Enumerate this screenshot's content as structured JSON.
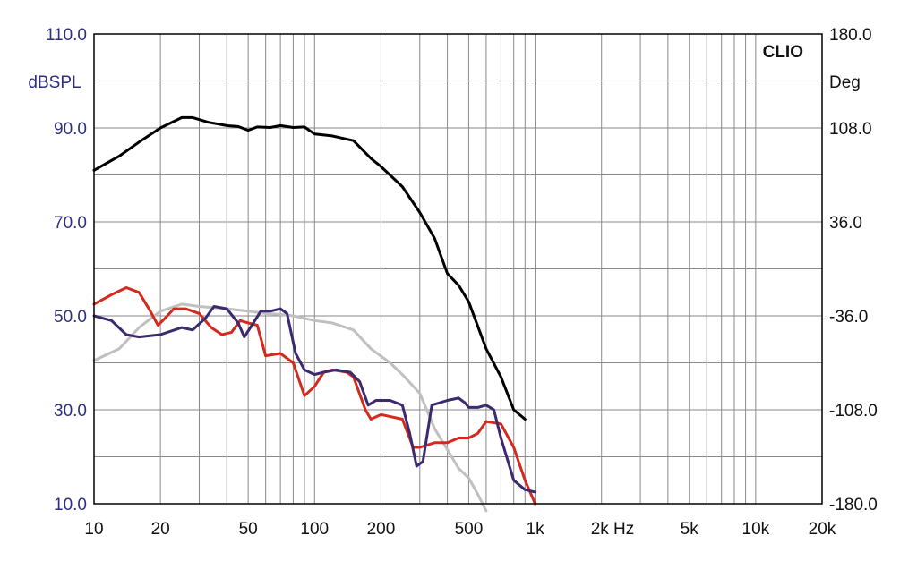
{
  "chart_data": {
    "type": "line",
    "brand": "CLIO",
    "left_axis": {
      "unit": "dBSPL",
      "range": [
        10,
        110
      ],
      "ticks": [
        "10.0",
        "30.0",
        "50.0",
        "70.0",
        "90.0",
        "110.0"
      ],
      "values": [
        10,
        30,
        50,
        70,
        90,
        110
      ],
      "color": "#2e2e82"
    },
    "right_axis": {
      "unit": "Deg",
      "range": [
        -180,
        180
      ],
      "ticks": [
        "-180.0",
        "-108.0",
        "-36.0",
        "36.0",
        "108.0",
        "180.0"
      ]
    },
    "x_axis": {
      "scale": "log",
      "range": [
        10,
        20000
      ],
      "ticks": [
        {
          "v": 10,
          "t": "10"
        },
        {
          "v": 20,
          "t": "20"
        },
        {
          "v": 50,
          "t": "50"
        },
        {
          "v": 100,
          "t": "100"
        },
        {
          "v": 200,
          "t": "200"
        },
        {
          "v": 500,
          "t": "500"
        },
        {
          "v": 1000,
          "t": "1k"
        },
        {
          "v": 2000,
          "t": "2k Hz"
        },
        {
          "v": 5000,
          "t": "5k"
        },
        {
          "v": 10000,
          "t": "10k"
        },
        {
          "v": 20000,
          "t": "20k"
        }
      ]
    },
    "grid": true,
    "series": [
      {
        "color": "#000000",
        "points": [
          [
            10,
            81
          ],
          [
            13,
            84
          ],
          [
            16,
            87
          ],
          [
            20,
            90
          ],
          [
            25,
            92.2
          ],
          [
            28,
            92.2
          ],
          [
            33,
            91.2
          ],
          [
            40,
            90.5
          ],
          [
            45,
            90.3
          ],
          [
            50,
            89.5
          ],
          [
            55,
            90.2
          ],
          [
            63,
            90.1
          ],
          [
            70,
            90.5
          ],
          [
            80,
            90.1
          ],
          [
            90,
            90.2
          ],
          [
            100,
            88.7
          ],
          [
            120,
            88.3
          ],
          [
            150,
            87.3
          ],
          [
            180,
            83.5
          ],
          [
            200,
            81.8
          ],
          [
            250,
            77.5
          ],
          [
            300,
            72
          ],
          [
            350,
            66.5
          ],
          [
            400,
            59
          ],
          [
            450,
            56.5
          ],
          [
            500,
            53
          ],
          [
            600,
            43
          ],
          [
            700,
            37
          ],
          [
            800,
            30
          ],
          [
            900,
            28
          ]
        ]
      },
      {
        "color": "#c0c0c0",
        "points": [
          [
            10,
            40.5
          ],
          [
            13,
            43
          ],
          [
            16,
            47.5
          ],
          [
            20,
            51
          ],
          [
            25,
            52.5
          ],
          [
            30,
            52
          ],
          [
            40,
            51.5
          ],
          [
            50,
            51
          ],
          [
            60,
            50.5
          ],
          [
            70,
            50.3
          ],
          [
            80,
            50
          ],
          [
            100,
            49
          ],
          [
            120,
            48.5
          ],
          [
            150,
            47
          ],
          [
            180,
            43
          ],
          [
            220,
            40
          ],
          [
            250,
            37.5
          ],
          [
            300,
            33.5
          ],
          [
            350,
            26
          ],
          [
            400,
            21.5
          ],
          [
            450,
            17.5
          ],
          [
            500,
            15.5
          ],
          [
            550,
            12
          ],
          [
            600,
            8.5
          ]
        ]
      },
      {
        "color": "#d42a1e",
        "points": [
          [
            10,
            52.5
          ],
          [
            12,
            54.5
          ],
          [
            14,
            56
          ],
          [
            16,
            55
          ],
          [
            18,
            51
          ],
          [
            19.5,
            48
          ],
          [
            21,
            49.5
          ],
          [
            23,
            51.5
          ],
          [
            26,
            51.5
          ],
          [
            30,
            50.5
          ],
          [
            34,
            47.5
          ],
          [
            38,
            46
          ],
          [
            42,
            46.5
          ],
          [
            46,
            49
          ],
          [
            50,
            48.5
          ],
          [
            55,
            48
          ],
          [
            60,
            41.5
          ],
          [
            70,
            42
          ],
          [
            80,
            40
          ],
          [
            90,
            33
          ],
          [
            100,
            35
          ],
          [
            110,
            38
          ],
          [
            120,
            38.5
          ],
          [
            140,
            38
          ],
          [
            150,
            37
          ],
          [
            170,
            30
          ],
          [
            180,
            28
          ],
          [
            200,
            29
          ],
          [
            250,
            28
          ],
          [
            280,
            22
          ],
          [
            300,
            22
          ],
          [
            350,
            23
          ],
          [
            400,
            23
          ],
          [
            450,
            24
          ],
          [
            500,
            24
          ],
          [
            550,
            25
          ],
          [
            600,
            27.5
          ],
          [
            700,
            27
          ],
          [
            800,
            22
          ],
          [
            900,
            15
          ],
          [
            1000,
            10
          ]
        ]
      },
      {
        "color": "#3b2a6e",
        "points": [
          [
            10,
            50
          ],
          [
            12,
            49
          ],
          [
            14,
            46
          ],
          [
            16,
            45.5
          ],
          [
            20,
            46
          ],
          [
            25,
            47.5
          ],
          [
            28,
            47
          ],
          [
            32,
            49.5
          ],
          [
            35,
            52
          ],
          [
            40,
            51.5
          ],
          [
            45,
            48.5
          ],
          [
            48,
            45.5
          ],
          [
            52,
            48
          ],
          [
            57,
            51
          ],
          [
            63,
            51
          ],
          [
            70,
            51.5
          ],
          [
            75,
            50.5
          ],
          [
            82,
            42
          ],
          [
            90,
            38.5
          ],
          [
            100,
            37.5
          ],
          [
            110,
            38
          ],
          [
            125,
            38.5
          ],
          [
            145,
            38
          ],
          [
            160,
            36
          ],
          [
            175,
            31
          ],
          [
            190,
            32
          ],
          [
            220,
            32
          ],
          [
            250,
            31
          ],
          [
            270,
            25
          ],
          [
            290,
            18
          ],
          [
            310,
            19
          ],
          [
            340,
            31
          ],
          [
            400,
            32
          ],
          [
            450,
            32.5
          ],
          [
            480,
            31.5
          ],
          [
            500,
            30.5
          ],
          [
            550,
            30.5
          ],
          [
            600,
            31
          ],
          [
            650,
            30
          ],
          [
            700,
            24
          ],
          [
            800,
            15
          ],
          [
            900,
            13
          ],
          [
            1000,
            12.5
          ]
        ]
      }
    ]
  }
}
